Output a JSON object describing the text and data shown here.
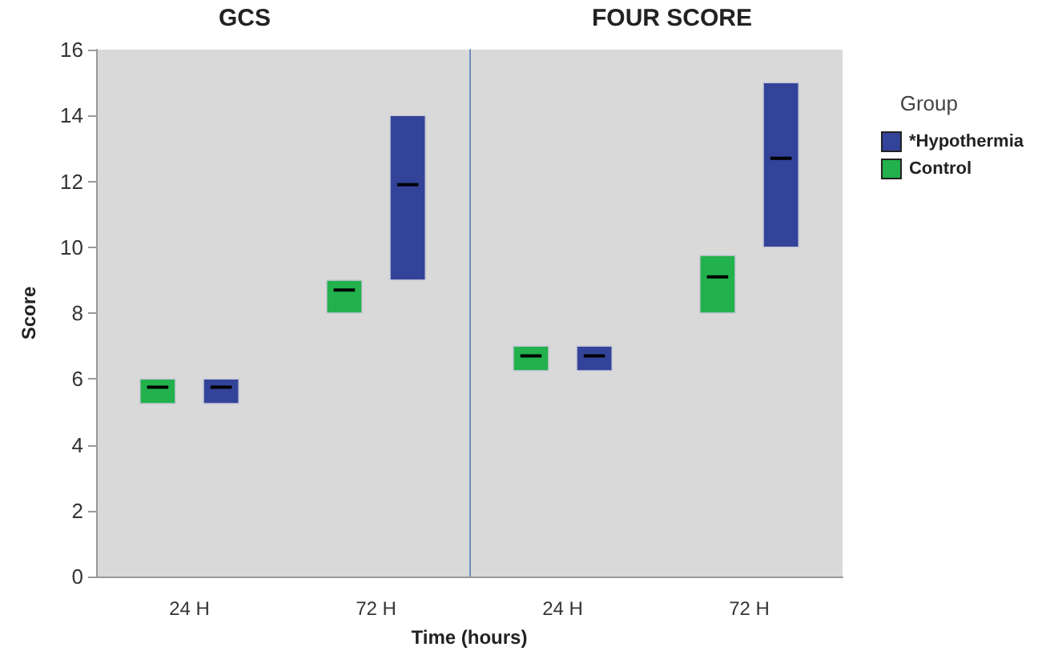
{
  "chart_data": [
    {
      "type": "box",
      "title": "GCS",
      "ylabel": "Score",
      "xlabel": "Time (hours)",
      "categories": [
        "24 H",
        "72 H"
      ],
      "ylim": [
        0,
        16
      ],
      "yticks": [
        0,
        2,
        4,
        6,
        8,
        10,
        12,
        14,
        16
      ],
      "series": [
        {
          "color": "#22b14c",
          "boxes": [
            {
              "low": 5.25,
              "q1": 5.25,
              "median": 5.75,
              "q3": 6,
              "high": 6
            },
            {
              "low": 8,
              "q1": 8,
              "median": 8.7,
              "q3": 9,
              "high": 9
            }
          ]
        },
        {
          "color": "#324399",
          "boxes": [
            {
              "low": 5.25,
              "q1": 5.25,
              "median": 5.75,
              "q3": 6,
              "high": 6
            },
            {
              "low": 9,
              "q1": 9,
              "median": 11.9,
              "q3": 14,
              "high": 14
            }
          ]
        }
      ]
    },
    {
      "type": "box",
      "title": "FOUR SCORE",
      "categories": [
        "24 H",
        "72 H"
      ],
      "ylim": [
        0,
        16
      ],
      "yticks": [
        0,
        2,
        4,
        6,
        8,
        10,
        12,
        14,
        16
      ],
      "tick_labels": "x",
      "legend": "right",
      "legend_title": "Group",
      "series": [
        {
          "name": "Control",
          "color": "#22b14c",
          "boxes": [
            {
              "low": 6.25,
              "q1": 6.25,
              "median": 6.7,
              "q3": 7,
              "high": 7
            },
            {
              "low": 8,
              "q1": 8,
              "median": 9.1,
              "q3": 9.75,
              "high": 9.75
            }
          ]
        },
        {
          "name": "*Hypothermia",
          "color": "#324399",
          "boxes": [
            {
              "low": 6.25,
              "q1": 6.25,
              "median": 6.7,
              "q3": 7,
              "high": 7
            },
            {
              "low": 10,
              "q1": 10,
              "median": 12.7,
              "q3": 15,
              "high": 15
            }
          ]
        }
      ]
    }
  ]
}
